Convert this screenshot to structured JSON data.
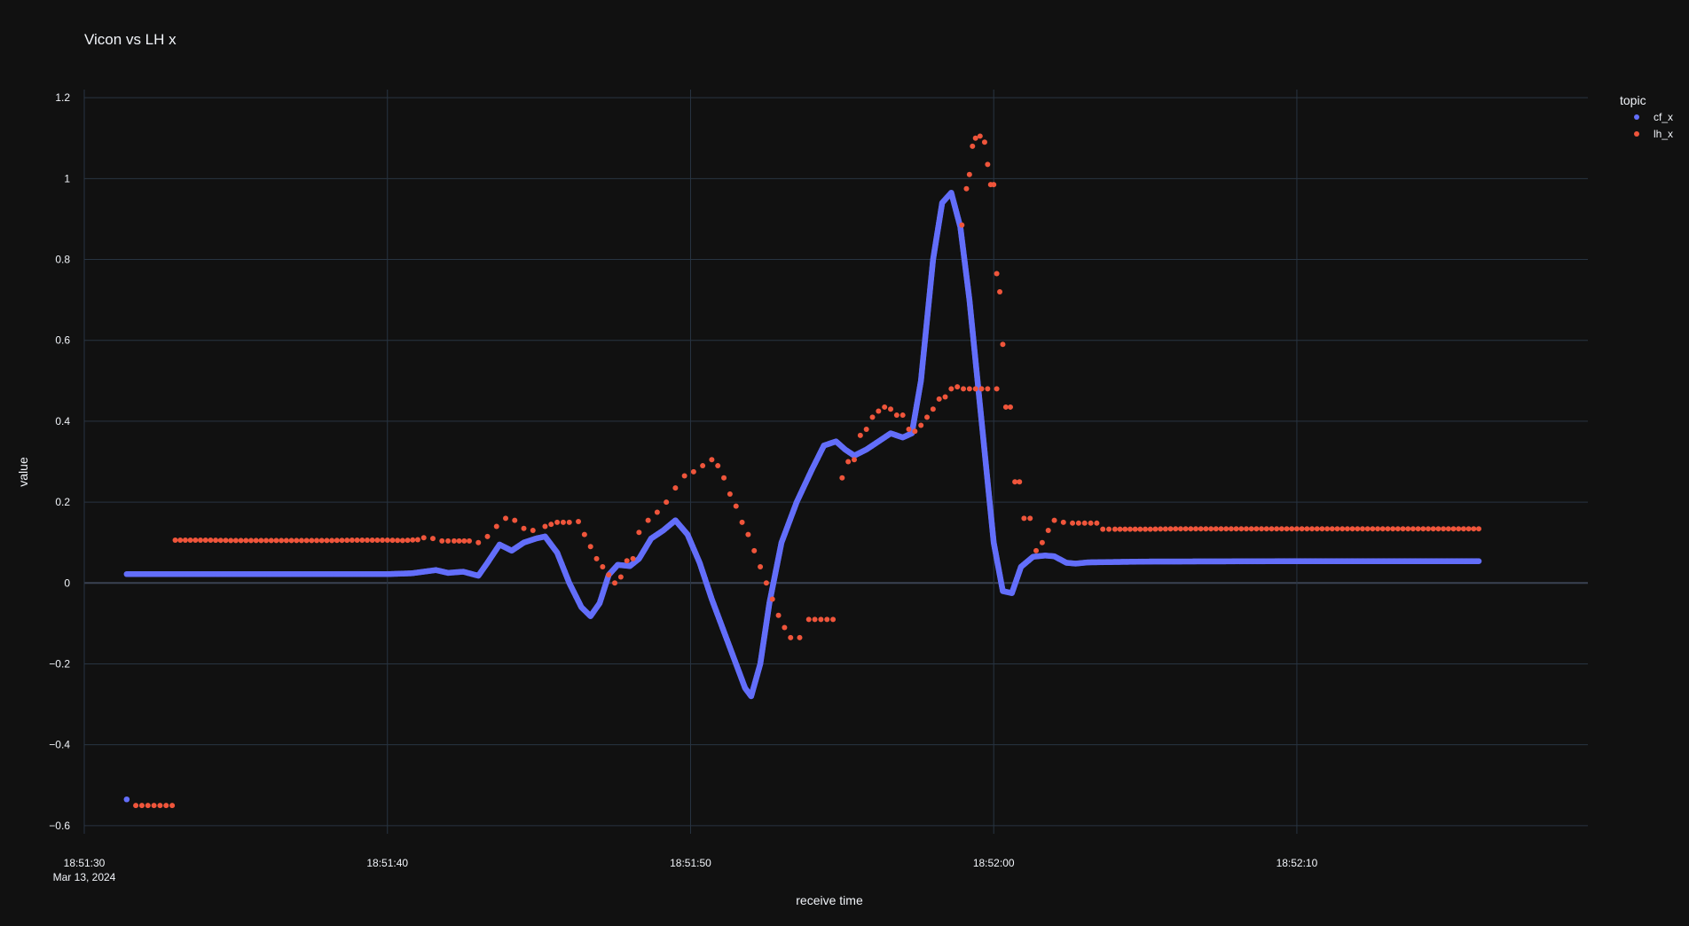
{
  "chart_data": {
    "type": "scatter",
    "title": "Vicon vs LH x",
    "xlabel": "receive time",
    "ylabel": "value",
    "x_unit": "seconds after 18:51:30 (Mar 13, 2024)",
    "xlim": [
      0,
      49.6
    ],
    "ylim": [
      -0.62,
      1.22
    ],
    "x_ticks": [
      {
        "value": 0,
        "label": "18:51:30",
        "sublabel": "Mar 13, 2024"
      },
      {
        "value": 10,
        "label": "18:51:40",
        "sublabel": ""
      },
      {
        "value": 20,
        "label": "18:51:50",
        "sublabel": ""
      },
      {
        "value": 30,
        "label": "18:52:00",
        "sublabel": ""
      },
      {
        "value": 40,
        "label": "18:52:10",
        "sublabel": ""
      }
    ],
    "y_ticks": [
      {
        "value": 1.2,
        "label": "1.2"
      },
      {
        "value": 1.0,
        "label": "1"
      },
      {
        "value": 0.8,
        "label": "0.8"
      },
      {
        "value": 0.6,
        "label": "0.6"
      },
      {
        "value": 0.4,
        "label": "0.4"
      },
      {
        "value": 0.2,
        "label": "0.2"
      },
      {
        "value": 0.0,
        "label": "0"
      },
      {
        "value": -0.2,
        "label": "−0.2"
      },
      {
        "value": -0.4,
        "label": "−0.4"
      },
      {
        "value": -0.6,
        "label": "−0.6"
      }
    ],
    "grid": true,
    "legend": {
      "title": "topic",
      "position": "top-right"
    },
    "series": [
      {
        "name": "cf_x",
        "color": "#636efa",
        "points": [
          [
            1.4,
            -0.535
          ],
          [
            1.4,
            0.022
          ],
          [
            5.0,
            0.022
          ],
          [
            9.0,
            0.022
          ],
          [
            10.0,
            0.022
          ],
          [
            10.8,
            0.024
          ],
          [
            11.2,
            0.028
          ],
          [
            11.6,
            0.032
          ],
          [
            12.0,
            0.025
          ],
          [
            12.5,
            0.028
          ],
          [
            12.8,
            0.022
          ],
          [
            13.0,
            0.018
          ],
          [
            13.3,
            0.05
          ],
          [
            13.7,
            0.095
          ],
          [
            14.1,
            0.08
          ],
          [
            14.5,
            0.1
          ],
          [
            14.9,
            0.11
          ],
          [
            15.2,
            0.115
          ],
          [
            15.6,
            0.075
          ],
          [
            16.0,
            0.0
          ],
          [
            16.4,
            -0.06
          ],
          [
            16.7,
            -0.082
          ],
          [
            17.0,
            -0.05
          ],
          [
            17.3,
            0.02
          ],
          [
            17.6,
            0.045
          ],
          [
            18.0,
            0.042
          ],
          [
            18.3,
            0.06
          ],
          [
            18.7,
            0.11
          ],
          [
            19.1,
            0.13
          ],
          [
            19.5,
            0.155
          ],
          [
            19.9,
            0.12
          ],
          [
            20.3,
            0.05
          ],
          [
            20.7,
            -0.04
          ],
          [
            21.1,
            -0.12
          ],
          [
            21.5,
            -0.2
          ],
          [
            21.8,
            -0.26
          ],
          [
            22.0,
            -0.28
          ],
          [
            22.3,
            -0.2
          ],
          [
            22.6,
            -0.05
          ],
          [
            23.0,
            0.1
          ],
          [
            23.5,
            0.2
          ],
          [
            24.0,
            0.28
          ],
          [
            24.4,
            0.34
          ],
          [
            24.8,
            0.35
          ],
          [
            25.1,
            0.33
          ],
          [
            25.4,
            0.315
          ],
          [
            25.8,
            0.33
          ],
          [
            26.2,
            0.35
          ],
          [
            26.6,
            0.37
          ],
          [
            27.0,
            0.36
          ],
          [
            27.3,
            0.37
          ],
          [
            27.6,
            0.5
          ],
          [
            28.0,
            0.8
          ],
          [
            28.3,
            0.94
          ],
          [
            28.6,
            0.965
          ],
          [
            28.9,
            0.88
          ],
          [
            29.2,
            0.7
          ],
          [
            29.6,
            0.4
          ],
          [
            30.0,
            0.1
          ],
          [
            30.3,
            -0.02
          ],
          [
            30.6,
            -0.025
          ],
          [
            30.9,
            0.04
          ],
          [
            31.3,
            0.065
          ],
          [
            31.7,
            0.068
          ],
          [
            32.0,
            0.066
          ],
          [
            32.4,
            0.05
          ],
          [
            32.7,
            0.048
          ],
          [
            33.1,
            0.051
          ],
          [
            34.0,
            0.052
          ],
          [
            35.0,
            0.053
          ],
          [
            40.0,
            0.054
          ],
          [
            45.0,
            0.054
          ],
          [
            46.0,
            0.054
          ]
        ]
      },
      {
        "name": "lh_x",
        "color": "#ef553b",
        "points": [
          [
            1.7,
            -0.55
          ],
          [
            2.1,
            -0.55
          ],
          [
            2.5,
            -0.55
          ],
          [
            2.9,
            -0.55
          ],
          [
            3.0,
            0.106
          ],
          [
            4.0,
            0.106
          ],
          [
            5.0,
            0.105
          ],
          [
            6.0,
            0.105
          ],
          [
            7.0,
            0.105
          ],
          [
            8.0,
            0.105
          ],
          [
            9.0,
            0.106
          ],
          [
            10.0,
            0.106
          ],
          [
            10.5,
            0.105
          ],
          [
            11.0,
            0.107
          ],
          [
            11.2,
            0.112
          ],
          [
            11.5,
            0.11
          ],
          [
            11.8,
            0.104
          ],
          [
            12.2,
            0.104
          ],
          [
            12.7,
            0.104
          ],
          [
            13.0,
            0.1
          ],
          [
            13.3,
            0.115
          ],
          [
            13.6,
            0.14
          ],
          [
            13.9,
            0.16
          ],
          [
            14.2,
            0.155
          ],
          [
            14.5,
            0.135
          ],
          [
            14.8,
            0.13
          ],
          [
            15.2,
            0.14
          ],
          [
            15.6,
            0.15
          ],
          [
            16.0,
            0.15
          ],
          [
            16.3,
            0.152
          ],
          [
            16.5,
            0.12
          ],
          [
            16.7,
            0.09
          ],
          [
            16.9,
            0.06
          ],
          [
            17.1,
            0.04
          ],
          [
            17.3,
            0.02
          ],
          [
            17.5,
            0.0
          ],
          [
            17.7,
            0.015
          ],
          [
            17.9,
            0.055
          ],
          [
            18.1,
            0.06
          ],
          [
            18.3,
            0.125
          ],
          [
            18.6,
            0.155
          ],
          [
            18.9,
            0.175
          ],
          [
            19.2,
            0.2
          ],
          [
            19.5,
            0.235
          ],
          [
            19.8,
            0.265
          ],
          [
            20.1,
            0.275
          ],
          [
            20.4,
            0.29
          ],
          [
            20.7,
            0.305
          ],
          [
            20.9,
            0.29
          ],
          [
            21.1,
            0.26
          ],
          [
            21.3,
            0.22
          ],
          [
            21.5,
            0.19
          ],
          [
            21.7,
            0.15
          ],
          [
            21.9,
            0.12
          ],
          [
            22.1,
            0.08
          ],
          [
            22.3,
            0.04
          ],
          [
            22.5,
            0.0
          ],
          [
            22.7,
            -0.04
          ],
          [
            22.9,
            -0.08
          ],
          [
            23.1,
            -0.11
          ],
          [
            23.3,
            -0.135
          ],
          [
            23.6,
            -0.135
          ],
          [
            23.9,
            -0.09
          ],
          [
            24.3,
            -0.09
          ],
          [
            24.7,
            -0.09
          ],
          [
            25.0,
            0.26
          ],
          [
            25.2,
            0.3
          ],
          [
            25.4,
            0.305
          ],
          [
            25.6,
            0.365
          ],
          [
            25.8,
            0.38
          ],
          [
            26.0,
            0.41
          ],
          [
            26.2,
            0.425
          ],
          [
            26.4,
            0.435
          ],
          [
            26.6,
            0.43
          ],
          [
            26.8,
            0.415
          ],
          [
            27.0,
            0.415
          ],
          [
            27.2,
            0.38
          ],
          [
            27.4,
            0.375
          ],
          [
            27.6,
            0.39
          ],
          [
            27.8,
            0.41
          ],
          [
            28.0,
            0.43
          ],
          [
            28.2,
            0.455
          ],
          [
            28.4,
            0.46
          ],
          [
            28.6,
            0.48
          ],
          [
            28.8,
            0.485
          ],
          [
            29.0,
            0.48
          ],
          [
            29.4,
            0.48
          ],
          [
            29.8,
            0.48
          ],
          [
            30.1,
            0.48
          ],
          [
            28.95,
            0.885
          ],
          [
            29.1,
            0.975
          ],
          [
            29.2,
            1.01
          ],
          [
            29.3,
            1.08
          ],
          [
            29.4,
            1.1
          ],
          [
            29.55,
            1.105
          ],
          [
            29.7,
            1.09
          ],
          [
            29.8,
            1.035
          ],
          [
            29.9,
            0.985
          ],
          [
            30.0,
            0.985
          ],
          [
            30.1,
            0.765
          ],
          [
            30.2,
            0.72
          ],
          [
            30.3,
            0.59
          ],
          [
            30.4,
            0.435
          ],
          [
            30.55,
            0.435
          ],
          [
            30.7,
            0.25
          ],
          [
            30.85,
            0.25
          ],
          [
            31.0,
            0.16
          ],
          [
            31.2,
            0.16
          ],
          [
            31.4,
            0.08
          ],
          [
            31.6,
            0.1
          ],
          [
            31.8,
            0.13
          ],
          [
            32.0,
            0.155
          ],
          [
            32.3,
            0.15
          ],
          [
            32.6,
            0.148
          ],
          [
            33.0,
            0.148
          ],
          [
            33.4,
            0.148
          ],
          [
            33.6,
            0.133
          ],
          [
            34.0,
            0.133
          ],
          [
            35.0,
            0.133
          ],
          [
            36.0,
            0.134
          ],
          [
            38.0,
            0.134
          ],
          [
            40.0,
            0.134
          ],
          [
            42.0,
            0.134
          ],
          [
            44.0,
            0.134
          ],
          [
            46.0,
            0.134
          ]
        ]
      }
    ]
  }
}
